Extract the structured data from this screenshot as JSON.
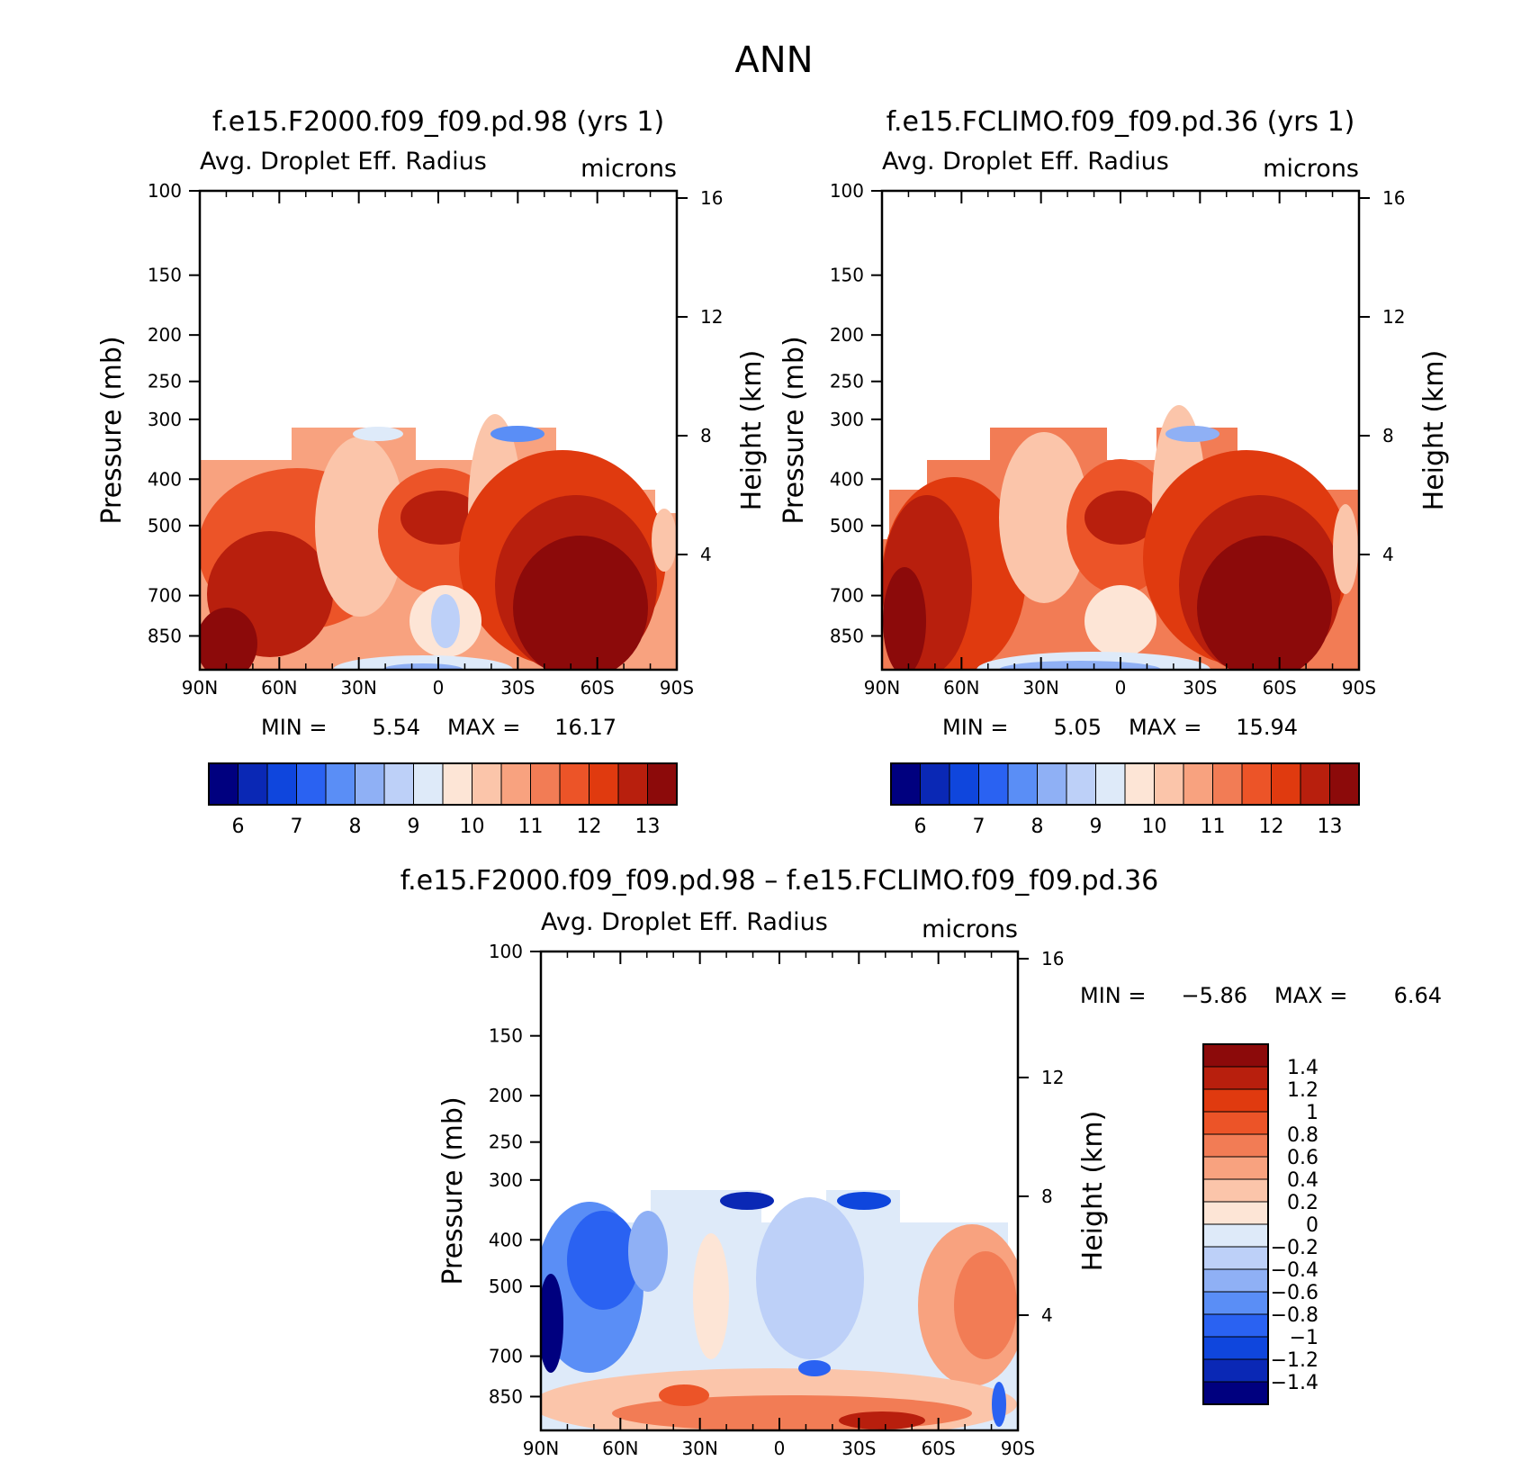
{
  "figure": {
    "title": "ANN"
  },
  "chart_data": [
    {
      "type": "heatmap",
      "title": "f.e15.F2000.f09_f09.pd.98 (yrs 1)",
      "left_label": "Avg. Droplet Eff. Radius",
      "right_label": "microns",
      "xlabel": "",
      "ylabel": "Pressure (mb)",
      "ylabel_right": "Height (km)",
      "x_ticks": [
        "90N",
        "60N",
        "30N",
        "0",
        "30S",
        "60S",
        "90S"
      ],
      "y_ticks": [
        "100",
        "150",
        "200",
        "250",
        "300",
        "400",
        "500",
        "700",
        "850"
      ],
      "y_ticks_right": [
        "16",
        "12",
        "8",
        "4"
      ],
      "ylim_mb": [
        100,
        1000
      ],
      "min_label": "MIN =",
      "min_value": "5.54",
      "max_label": "MAX =",
      "max_value": "16.17",
      "colorbar_ticks": [
        "6",
        "7",
        "8",
        "9",
        "10",
        "11",
        "12",
        "13"
      ],
      "colorbar_levels": [
        5.5,
        6,
        6.5,
        7,
        7.5,
        8,
        8.5,
        9,
        9.5,
        10,
        10.5,
        11,
        11.5,
        12,
        12.5,
        13,
        13.5
      ],
      "colors": [
        "#00007f",
        "#0a28b5",
        "#0f46dd",
        "#2a62f2",
        "#5a8ef6",
        "#8fb0f5",
        "#bdd0f8",
        "#deeaf9",
        "#fde5d6",
        "#fbc5aa",
        "#f8a27f",
        "#f27c55",
        "#ec5428",
        "#e03a0f",
        "#b81f0d",
        "#8c0a0a"
      ]
    },
    {
      "type": "heatmap",
      "title": "f.e15.FCLIMO.f09_f09.pd.36 (yrs 1)",
      "left_label": "Avg. Droplet Eff. Radius",
      "right_label": "microns",
      "xlabel": "",
      "ylabel": "Pressure (mb)",
      "ylabel_right": "Height (km)",
      "x_ticks": [
        "90N",
        "60N",
        "30N",
        "0",
        "30S",
        "60S",
        "90S"
      ],
      "y_ticks": [
        "100",
        "150",
        "200",
        "250",
        "300",
        "400",
        "500",
        "700",
        "850"
      ],
      "y_ticks_right": [
        "16",
        "12",
        "8",
        "4"
      ],
      "ylim_mb": [
        100,
        1000
      ],
      "min_label": "MIN =",
      "min_value": "5.05",
      "max_label": "MAX =",
      "max_value": "15.94",
      "colorbar_ticks": [
        "6",
        "7",
        "8",
        "9",
        "10",
        "11",
        "12",
        "13"
      ],
      "colorbar_levels": [
        5.5,
        6,
        6.5,
        7,
        7.5,
        8,
        8.5,
        9,
        9.5,
        10,
        10.5,
        11,
        11.5,
        12,
        12.5,
        13,
        13.5
      ],
      "colors": [
        "#00007f",
        "#0a28b5",
        "#0f46dd",
        "#2a62f2",
        "#5a8ef6",
        "#8fb0f5",
        "#bdd0f8",
        "#deeaf9",
        "#fde5d6",
        "#fbc5aa",
        "#f8a27f",
        "#f27c55",
        "#ec5428",
        "#e03a0f",
        "#b81f0d",
        "#8c0a0a"
      ]
    },
    {
      "type": "heatmap",
      "title": "f.e15.F2000.f09_f09.pd.98 – f.e15.FCLIMO.f09_f09.pd.36",
      "left_label": "Avg. Droplet Eff. Radius",
      "right_label": "microns",
      "xlabel": "",
      "ylabel": "Pressure (mb)",
      "ylabel_right": "Height (km)",
      "x_ticks": [
        "90N",
        "60N",
        "30N",
        "0",
        "30S",
        "60S",
        "90S"
      ],
      "y_ticks": [
        "100",
        "150",
        "200",
        "250",
        "300",
        "400",
        "500",
        "700",
        "850"
      ],
      "y_ticks_right": [
        "16",
        "12",
        "8",
        "4"
      ],
      "ylim_mb": [
        100,
        1000
      ],
      "min_label": "MIN =",
      "min_value": "−5.86",
      "max_label": "MAX =",
      "max_value": "6.64",
      "colorbar_ticks": [
        "1.4",
        "1.2",
        "1",
        "0.8",
        "0.6",
        "0.4",
        "0.2",
        "0",
        "−0.2",
        "−0.4",
        "−0.6",
        "−0.8",
        "−1",
        "−1.2",
        "−1.4"
      ],
      "colorbar_levels": [
        -1.5,
        -1.4,
        -1.2,
        -1.0,
        -0.8,
        -0.6,
        -0.4,
        -0.2,
        0,
        0.2,
        0.4,
        0.6,
        0.8,
        1.0,
        1.2,
        1.4,
        1.5
      ],
      "colors": [
        "#8c0a0a",
        "#b81f0d",
        "#e03a0f",
        "#ec5428",
        "#f27c55",
        "#f8a27f",
        "#fbc5aa",
        "#fde5d6",
        "#deeaf9",
        "#bdd0f8",
        "#8fb0f5",
        "#5a8ef6",
        "#2a62f2",
        "#0f46dd",
        "#0a28b5",
        "#00007f"
      ]
    }
  ]
}
